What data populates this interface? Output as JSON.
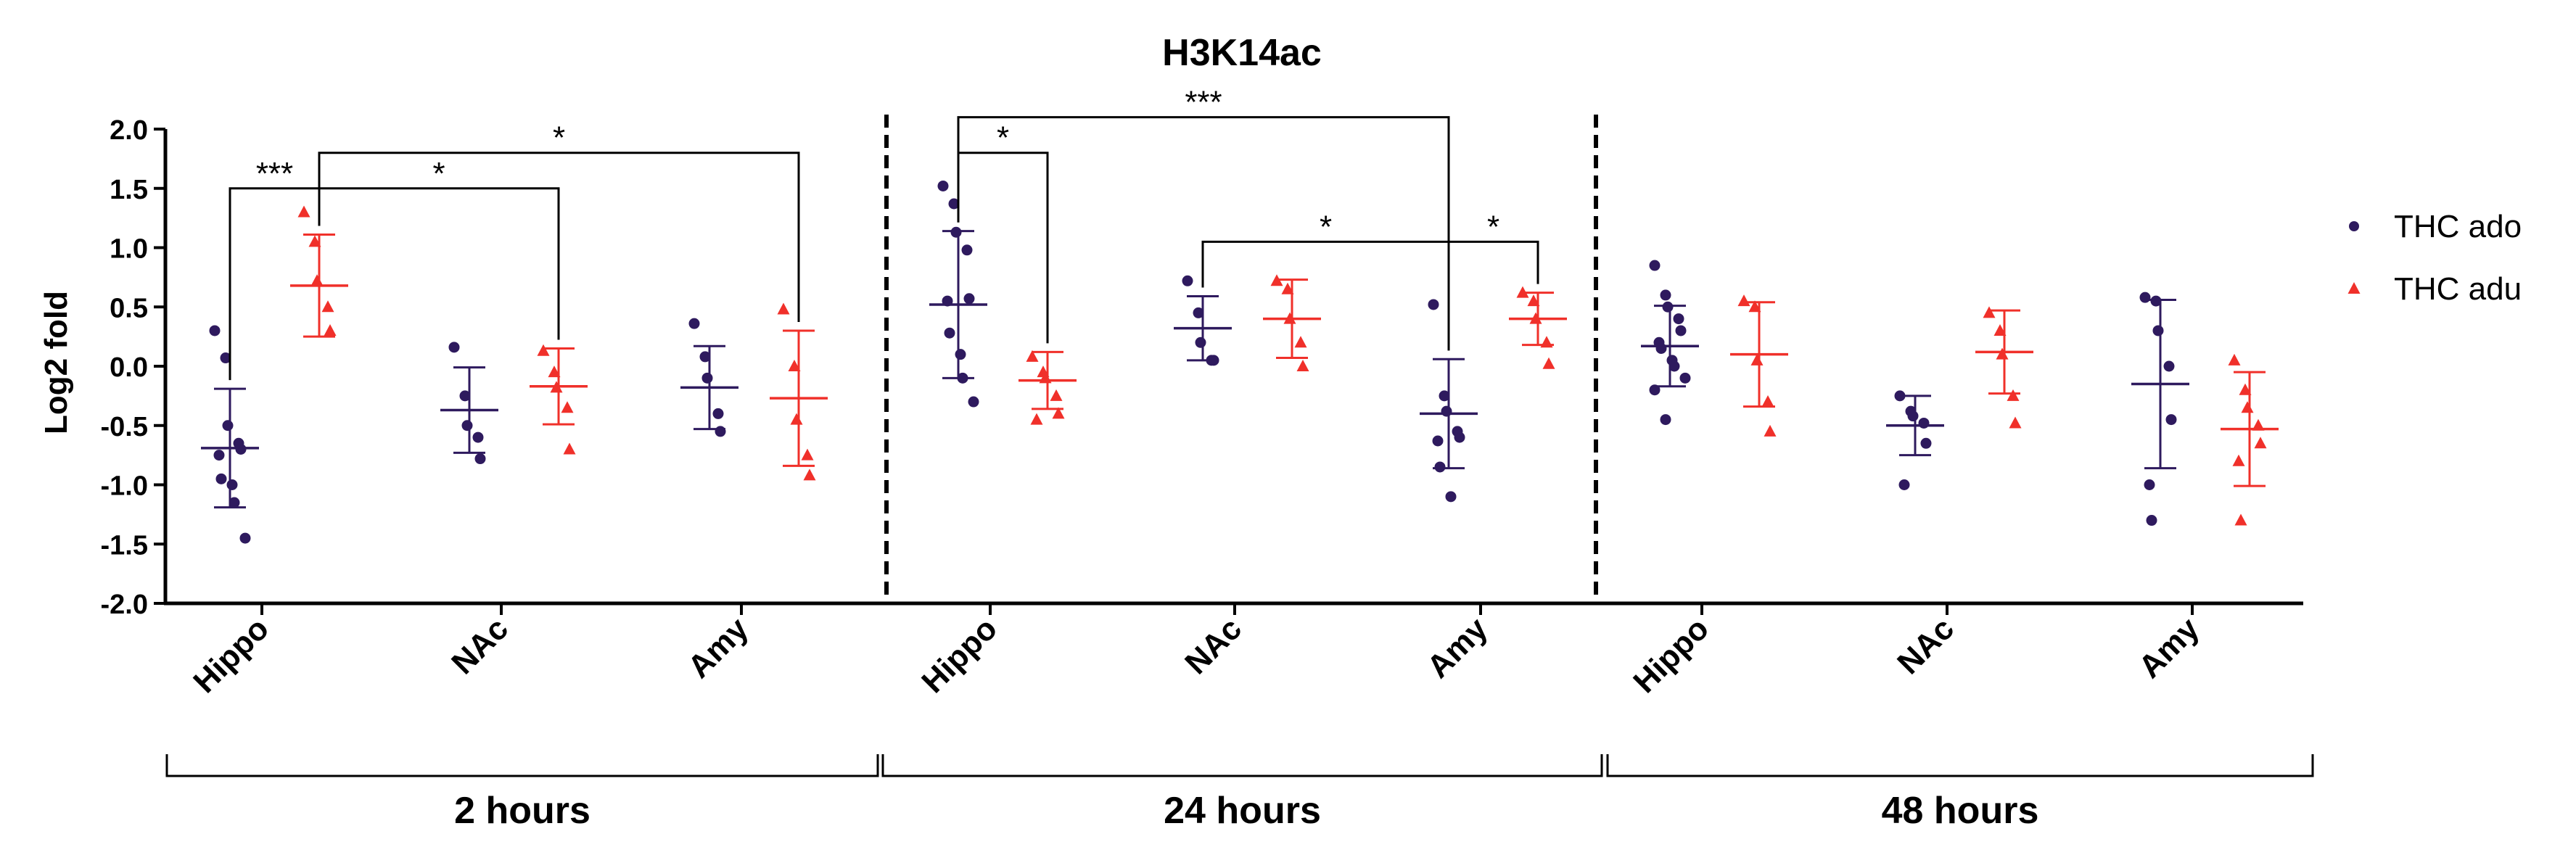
{
  "chart_data": {
    "type": "scatter",
    "title": "H3K14ac",
    "ylabel": "Log2 fold",
    "ylim": [
      -2.0,
      2.0
    ],
    "yticks": [
      2.0,
      1.5,
      1.0,
      0.5,
      0.0,
      -0.5,
      -1.0,
      -1.5,
      -2.0
    ],
    "ytick_labels": [
      "2.0",
      "1.5",
      "1.0",
      "0.5",
      "0.0",
      "-0.5",
      "-1.0",
      "-1.5",
      "-2.0"
    ],
    "categories": [
      "Hippo",
      "NAc",
      "Amy",
      "Hippo",
      "NAc",
      "Amy",
      "Hippo",
      "NAc",
      "Amy"
    ],
    "groups": [
      {
        "label": "2 hours",
        "categories": [
          0,
          1,
          2
        ]
      },
      {
        "label": "24 hours",
        "categories": [
          3,
          4,
          5
        ]
      },
      {
        "label": "48 hours",
        "categories": [
          6,
          7,
          8
        ]
      }
    ],
    "legend_position": "right",
    "series": [
      {
        "name": "THC ado",
        "color": "#2e1a5e",
        "marker": "circle",
        "mean": [
          -0.69,
          -0.37,
          -0.18,
          0.52,
          0.32,
          -0.4,
          0.17,
          -0.5,
          -0.15
        ],
        "sd": [
          0.5,
          0.36,
          0.35,
          0.62,
          0.27,
          0.46,
          0.34,
          0.25,
          0.71
        ],
        "points": [
          [
            0.3,
            0.07,
            -0.5,
            -0.65,
            -0.7,
            -0.75,
            -0.95,
            -1.0,
            -1.15,
            -1.45
          ],
          [
            0.16,
            -0.25,
            -0.5,
            -0.6,
            -0.78
          ],
          [
            0.36,
            0.08,
            -0.1,
            -0.4,
            -0.55
          ],
          [
            1.52,
            1.37,
            1.13,
            0.98,
            0.57,
            0.55,
            0.28,
            0.1,
            -0.1,
            -0.3
          ],
          [
            0.72,
            0.45,
            0.2,
            0.05,
            0.05
          ],
          [
            0.52,
            -0.25,
            -0.38,
            -0.55,
            -0.6,
            -0.63,
            -0.85,
            -1.1
          ],
          [
            0.85,
            0.6,
            0.5,
            0.4,
            0.3,
            0.2,
            0.15,
            0.05,
            0.0,
            -0.1,
            -0.2,
            -0.45
          ],
          [
            -0.25,
            -0.38,
            -0.42,
            -0.48,
            -0.65,
            -1.0
          ],
          [
            0.58,
            0.55,
            0.3,
            0.0,
            -0.45,
            -1.0,
            -1.3
          ]
        ]
      },
      {
        "name": "THC adu",
        "color": "#f0302a",
        "marker": "triangle",
        "mean": [
          0.68,
          -0.17,
          -0.27,
          -0.12,
          0.4,
          0.4,
          0.1,
          0.12,
          -0.53
        ],
        "sd": [
          0.43,
          0.32,
          0.57,
          0.24,
          0.33,
          0.22,
          0.44,
          0.35,
          0.48
        ],
        "points": [
          [
            1.3,
            1.05,
            0.72,
            0.5,
            0.3
          ],
          [
            0.13,
            -0.05,
            -0.18,
            -0.35,
            -0.7
          ],
          [
            0.48,
            0.0,
            -0.45,
            -0.75,
            -0.92
          ],
          [
            0.08,
            -0.05,
            -0.1,
            -0.25,
            -0.4,
            -0.45
          ],
          [
            0.72,
            0.65,
            0.4,
            0.2,
            0.0
          ],
          [
            0.62,
            0.55,
            0.4,
            0.2,
            0.02
          ],
          [
            0.55,
            0.5,
            0.05,
            -0.3,
            -0.55
          ],
          [
            0.45,
            0.3,
            0.1,
            -0.25,
            -0.48
          ],
          [
            0.05,
            -0.2,
            -0.35,
            -0.5,
            -0.65,
            -0.8,
            -1.3
          ]
        ]
      }
    ],
    "significance": [
      {
        "from": [
          0,
          0
        ],
        "to": [
          0,
          1
        ],
        "label": "***",
        "level": 1.5
      },
      {
        "from": [
          0,
          1
        ],
        "to": [
          1,
          1
        ],
        "label": "*",
        "level": 1.5
      },
      {
        "from": [
          0,
          1
        ],
        "to": [
          2,
          1
        ],
        "label": "*",
        "level": 1.8
      },
      {
        "from": [
          3,
          0
        ],
        "to": [
          3,
          1
        ],
        "label": "*",
        "level": 1.8
      },
      {
        "from": [
          3,
          0
        ],
        "to": [
          5,
          0
        ],
        "label": "***",
        "level": 2.1
      },
      {
        "from": [
          4,
          0
        ],
        "to": [
          5,
          0
        ],
        "label": "*",
        "level": 1.05
      },
      {
        "from": [
          5,
          0
        ],
        "to": [
          5,
          1
        ],
        "label": "*",
        "level": 1.05
      }
    ]
  }
}
